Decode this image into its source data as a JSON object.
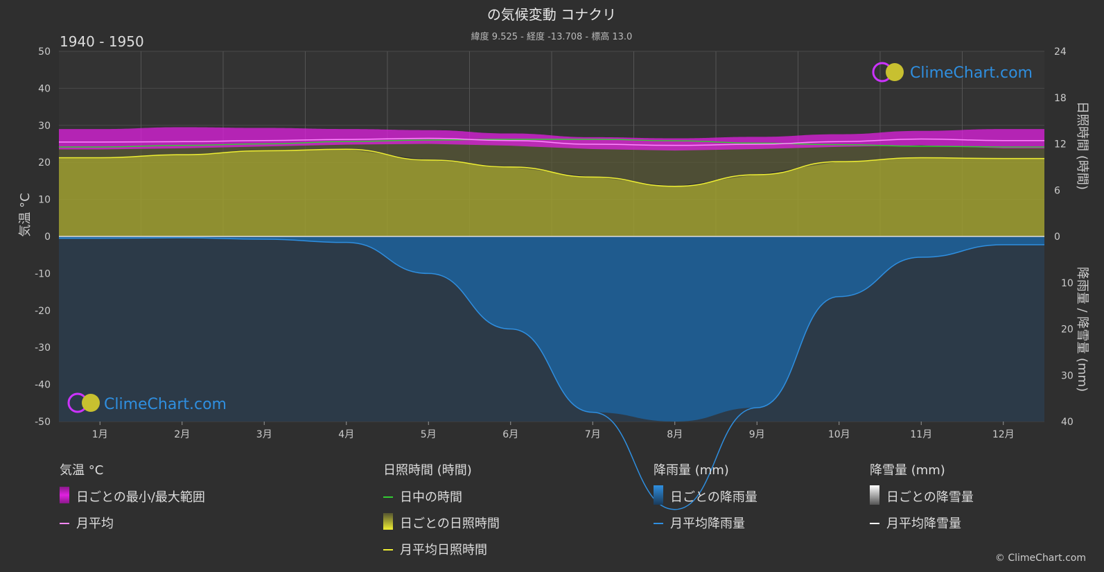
{
  "title": "の気候変動 コナクリ",
  "subtitle": "緯度 9.525 - 経度 -13.708 - 標高 13.0",
  "period": "1940 - 1950",
  "watermark": "ClimeChart.com",
  "copyright": "© ClimeChart.com",
  "colors": {
    "background": "#2f2f2f",
    "temp_range": "#e020e0",
    "temp_avg": "#ff88ff",
    "daylight": "#33cc33",
    "sunshine_fill": "#a0a030",
    "sunshine_avg": "#eeee33",
    "rain_fill": "#1e5f96",
    "rain_avg": "#2f8fe0",
    "snow_avg": "#ffffff",
    "brand": "#2f8fe0"
  },
  "legend": {
    "temp_header": "気温 °C",
    "temp_range": "日ごとの最小/最大範囲",
    "temp_avg": "月平均",
    "sun_header": "日照時間 (時間)",
    "daylight": "日中の時間",
    "sunshine_daily": "日ごとの日照時間",
    "sunshine_avg": "月平均日照時間",
    "rain_header": "降雨量 (mm)",
    "rain_daily": "日ごとの降雨量",
    "rain_avg": "月平均降雨量",
    "snow_header": "降雪量 (mm)",
    "snow_daily": "日ごとの降雪量",
    "snow_avg": "月平均降雪量"
  },
  "chart_data": {
    "type": "line",
    "categories": [
      "1月",
      "2月",
      "3月",
      "4月",
      "5月",
      "6月",
      "7月",
      "8月",
      "9月",
      "10月",
      "11月",
      "12月"
    ],
    "left_axis": {
      "label": "気温 °C",
      "range": [
        -50,
        50
      ],
      "ticks": [
        50,
        40,
        30,
        20,
        10,
        0,
        -10,
        -20,
        -30,
        -40,
        -50
      ]
    },
    "right_axis_top": {
      "label": "日照時間 (時間)",
      "range": [
        0,
        24
      ],
      "ticks": [
        24,
        18,
        12,
        6,
        0
      ]
    },
    "right_axis_bottom": {
      "label": "降雨量 / 降雪量 (mm)",
      "range": [
        0,
        40
      ],
      "ticks": [
        0,
        10,
        20,
        30,
        40
      ]
    },
    "grid": true,
    "series": [
      {
        "name": "月平均",
        "axis": "temp",
        "values": [
          25.5,
          25.6,
          25.9,
          26.2,
          26.5,
          25.9,
          24.9,
          24.6,
          24.9,
          25.6,
          26.3,
          25.9
        ]
      },
      {
        "name": "日ごとの最小/最大範囲",
        "axis": "temp",
        "min": [
          23.5,
          23.8,
          24.3,
          24.8,
          25.0,
          24.5,
          23.6,
          23.2,
          23.6,
          24.2,
          24.6,
          23.8
        ],
        "max": [
          29.0,
          29.5,
          29.3,
          29.0,
          28.7,
          27.8,
          26.8,
          26.5,
          26.9,
          27.6,
          28.5,
          29.0
        ]
      },
      {
        "name": "日中の時間",
        "axis": "sun",
        "values": [
          11.6,
          11.8,
          12.0,
          12.3,
          12.5,
          12.6,
          12.6,
          12.4,
          12.1,
          11.9,
          11.7,
          11.6
        ]
      },
      {
        "name": "月平均日照時間",
        "axis": "sun",
        "values": [
          10.2,
          10.6,
          11.1,
          11.3,
          9.9,
          9.0,
          7.7,
          6.5,
          8.0,
          9.7,
          10.2,
          10.1
        ]
      },
      {
        "name": "月平均降雨量",
        "axis": "rain",
        "values": [
          0.4,
          0.3,
          0.6,
          1.3,
          8.0,
          20.0,
          38.0,
          59.0,
          37.0,
          13.0,
          4.5,
          1.8
        ]
      },
      {
        "name": "月平均降雪量",
        "axis": "rain",
        "values": [
          0,
          0,
          0,
          0,
          0,
          0,
          0,
          0,
          0,
          0,
          0,
          0
        ]
      }
    ]
  }
}
